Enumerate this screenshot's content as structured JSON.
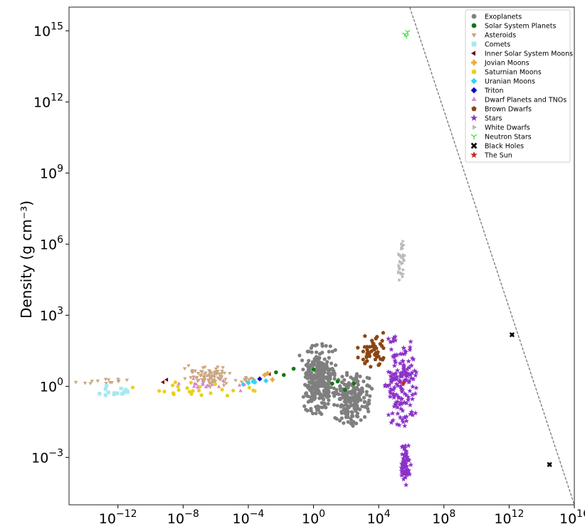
{
  "chart_data": {
    "type": "scatter",
    "title": "",
    "xlabel": "",
    "ylabel": "Density (g cm⁻³)",
    "x_scale": "log",
    "y_scale": "log",
    "xlim": [
      1e-15,
      1e+16
    ],
    "ylim": [
      1e-05,
      1e+16
    ],
    "x_ticks": [
      {
        "value": 1e-12,
        "base": "10",
        "exp": "−12"
      },
      {
        "value": 1e-08,
        "base": "10",
        "exp": "−8"
      },
      {
        "value": 0.0001,
        "base": "10",
        "exp": "−4"
      },
      {
        "value": 1,
        "base": "10",
        "exp": "0"
      },
      {
        "value": 10000.0,
        "base": "10",
        "exp": "4"
      },
      {
        "value": 100000000.0,
        "base": "10",
        "exp": "8"
      },
      {
        "value": 1000000000000.0,
        "base": "10",
        "exp": "12"
      },
      {
        "value": 1e+16,
        "base": "10",
        "exp": "16"
      }
    ],
    "y_ticks": [
      {
        "value": 0.001,
        "base": "10",
        "exp": "−3"
      },
      {
        "value": 1,
        "base": "10",
        "exp": "0"
      },
      {
        "value": 1000.0,
        "base": "10",
        "exp": "3"
      },
      {
        "value": 1000000.0,
        "base": "10",
        "exp": "6"
      },
      {
        "value": 1000000000.0,
        "base": "10",
        "exp": "9"
      },
      {
        "value": 1000000000000.0,
        "base": "10",
        "exp": "12"
      },
      {
        "value": 1000000000000000.0,
        "base": "10",
        "exp": "15"
      }
    ],
    "grid": false,
    "legend_position": "top-right",
    "reference_line": {
      "style": "dashed",
      "color": "#555555",
      "points": [
        [
          800000.0,
          1e+16
        ],
        [
          1e+16,
          1e-05
        ]
      ]
    },
    "series": [
      {
        "name": "Exoplanets",
        "marker": "circle",
        "color": "#7f7f7f",
        "clusters": [
          {
            "x": [
              0.2,
              20
            ],
            "y": [
              0.05,
              20
            ],
            "n": 230
          },
          {
            "x": [
              10,
              5000
            ],
            "y": [
              0.02,
              5
            ],
            "n": 200
          },
          {
            "x": [
              0.1,
              50
            ],
            "y": [
              0.5,
              100
            ],
            "n": 90
          }
        ],
        "points": [
          [
            1500000000000.0,
            150
          ],
          [
            300000000000000.0,
            0.0005
          ]
        ]
      },
      {
        "name": "Solar System Planets",
        "marker": "circle",
        "color": "#127812",
        "points": [
          [
            0.005,
            3.9
          ],
          [
            0.015,
            3.0
          ],
          [
            0.06,
            5.5
          ],
          [
            1,
            5.2
          ],
          [
            30,
            1.6
          ],
          [
            85,
            0.7
          ],
          [
            300,
            1.3
          ],
          [
            14,
            1.3
          ]
        ]
      },
      {
        "name": "Asteroids",
        "marker": "triangle-down",
        "color": "#c9a77f",
        "clusters": [
          {
            "x": [
              2e-15,
              1e-11
            ],
            "y": [
              1.2,
              2.2
            ],
            "n": 14
          },
          {
            "x": [
              1e-08,
              1e-05
            ],
            "y": [
              0.8,
              8
            ],
            "n": 80
          },
          {
            "x": [
              1e-05,
              0.001
            ],
            "y": [
              1.2,
              3
            ],
            "n": 12
          }
        ]
      },
      {
        "name": "Comets",
        "marker": "square",
        "color": "#a6e8ef",
        "clusters": [
          {
            "x": [
              2e-14,
              8e-12
            ],
            "y": [
              0.3,
              1.2
            ],
            "n": 14
          }
        ]
      },
      {
        "name": "Inner Solar System Moons",
        "marker": "triangle-left",
        "color": "#6b0000",
        "points": [
          [
            1e-09,
            1.9
          ],
          [
            6e-10,
            1.5
          ],
          [
            0.002,
            3.3
          ]
        ]
      },
      {
        "name": "Jovian Moons",
        "marker": "plus",
        "color": "#e9a93b",
        "points": [
          [
            0.0015,
            3.5
          ],
          [
            0.001,
            3.0
          ],
          [
            0.003,
            1.9
          ]
        ]
      },
      {
        "name": "Saturnian Moons",
        "marker": "circle",
        "color": "#e8cf1e",
        "clusters": [
          {
            "x": [
              1e-12,
              0.001
            ],
            "y": [
              0.25,
              1.6
            ],
            "n": 26
          }
        ]
      },
      {
        "name": "Uranian Moons",
        "marker": "diamond",
        "color": "#33d4f0",
        "points": [
          [
            0.0001,
            1.4
          ],
          [
            0.0002,
            1.6
          ],
          [
            0.0012,
            1.7
          ],
          [
            5e-05,
            1.2
          ],
          [
            0.00025,
            1.5
          ]
        ]
      },
      {
        "name": "Triton",
        "marker": "diamond",
        "color": "#0a0acd",
        "points": [
          [
            0.0005,
            2.06
          ]
        ]
      },
      {
        "name": "Dwarf Planets and TNOs",
        "marker": "triangle-up",
        "color": "#de80d6",
        "clusters": [
          {
            "x": [
              1e-09,
              0.0001
            ],
            "y": [
              0.5,
              2.5
            ],
            "n": 16
          }
        ]
      },
      {
        "name": "Brown Dwarfs",
        "marker": "pentagon",
        "color": "#8b4513",
        "clusters": [
          {
            "x": [
              400,
              40000
            ],
            "y": [
              3,
              300
            ],
            "n": 50
          }
        ]
      },
      {
        "name": "Stars",
        "marker": "star",
        "color": "#8b32c8",
        "clusters": [
          {
            "x": [
              20000.0,
              3000000.0
            ],
            "y": [
              0.01,
              200
            ],
            "n": 160
          },
          {
            "x": [
              200000.0,
              1000000.0
            ],
            "y": [
              5e-05,
              0.005
            ],
            "n": 70
          }
        ]
      },
      {
        "name": "White Dwarfs",
        "marker": "triangle-right",
        "color": "#b9b9b9",
        "clusters": [
          {
            "x": [
              150000.0,
              400000.0
            ],
            "y": [
              20000.0,
              2000000.0
            ],
            "n": 30
          }
        ]
      },
      {
        "name": "Neutron Stars",
        "marker": "tri-down",
        "color": "#3adb2f",
        "points": [
          [
            400000.0,
            700000000000000.0
          ],
          [
            600000.0,
            900000000000000.0
          ],
          [
            500000.0,
            600000000000000.0
          ]
        ]
      },
      {
        "name": "Black Holes",
        "marker": "x",
        "color": "#000000",
        "points": [
          [
            300000000000000.0,
            0.0005
          ],
          [
            1500000000000.0,
            150
          ]
        ]
      },
      {
        "name": "The Sun",
        "marker": "star",
        "color": "#cc2222",
        "points": [
          [
            330000.0,
            1.41
          ]
        ]
      }
    ]
  }
}
